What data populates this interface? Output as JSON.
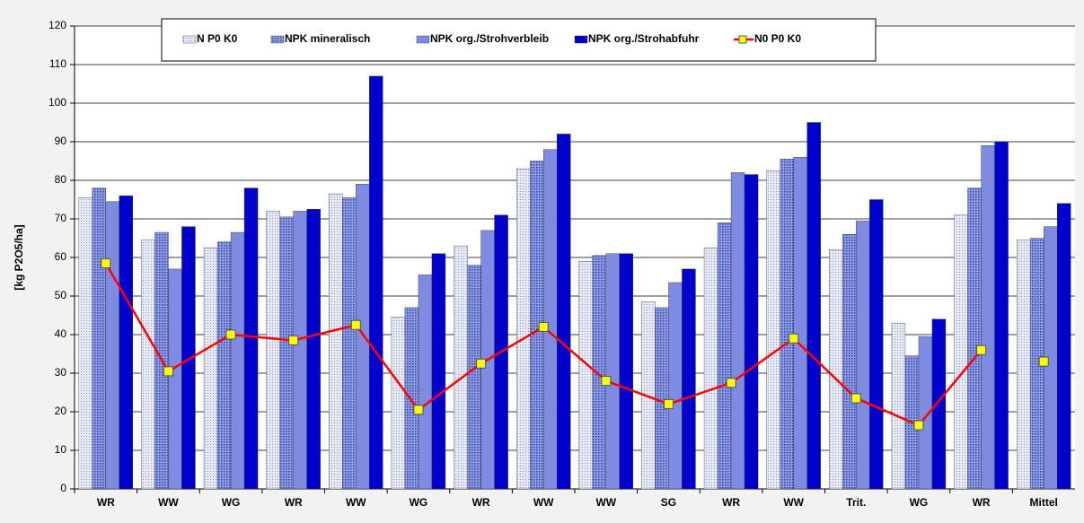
{
  "chart_data": {
    "type": "bar",
    "y_label": "[kg P2O5/ha]",
    "categories": [
      "WR",
      "WW",
      "WG",
      "WR",
      "WW",
      "WG",
      "WR",
      "WW",
      "WW",
      "SG",
      "WR",
      "WW",
      "Trit.",
      "WG",
      "WR",
      "Mittel"
    ],
    "series": [
      {
        "name": "N P0 K0",
        "color": "#e6eaf8",
        "pattern": "dots",
        "values": [
          75.5,
          64.5,
          62.5,
          72,
          76.5,
          44.5,
          63,
          83,
          59,
          48.5,
          62.5,
          82.5,
          62,
          43,
          71,
          64.5
        ]
      },
      {
        "name": "NPK mineralisch",
        "color": "#8f9ce6",
        "pattern": "checker",
        "values": [
          78,
          66.5,
          64,
          70.5,
          75.5,
          47,
          58,
          85,
          60.5,
          47,
          69,
          85.5,
          66,
          34.5,
          78,
          65
        ]
      },
      {
        "name": "NPK org./Strohverbleib",
        "color": "#7f8be0",
        "pattern": "solid",
        "values": [
          74.5,
          57,
          66.5,
          72,
          79,
          55.5,
          67,
          88,
          61,
          53.5,
          82,
          86,
          69.5,
          39.5,
          89,
          68
        ]
      },
      {
        "name": "NPK org./Strohabfuhr",
        "color": "#0000cc",
        "pattern": "solid",
        "values": [
          76,
          68,
          78,
          72.5,
          107,
          61,
          71,
          92,
          61,
          57,
          81.5,
          95,
          75,
          44,
          90,
          74
        ]
      },
      {
        "name": "N0 P0 K0",
        "type": "line",
        "color": "#ff0000",
        "marker_color": "#ffff00",
        "values": [
          58.5,
          30.5,
          40,
          38.5,
          42.5,
          20.5,
          32.5,
          42,
          28,
          22,
          27.5,
          39,
          23.5,
          16.5,
          36,
          33
        ]
      }
    ],
    "ylim": [
      0,
      120
    ],
    "yticks": [
      0,
      10,
      20,
      30,
      40,
      50,
      60,
      70,
      80,
      90,
      100,
      110,
      120
    ],
    "grid": true
  }
}
